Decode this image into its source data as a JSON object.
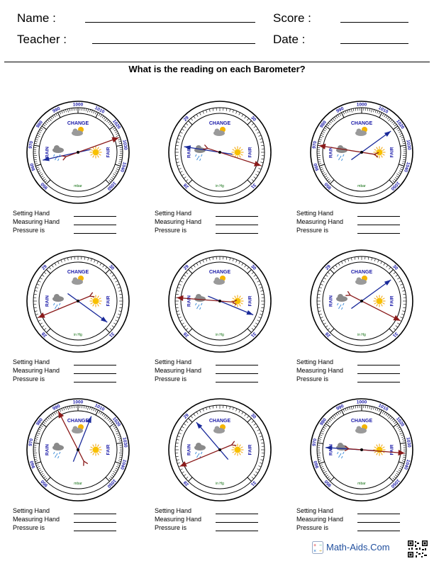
{
  "header": {
    "name_label": "Name :",
    "score_label": "Score :",
    "teacher_label": "Teacher :",
    "date_label": "Date :"
  },
  "instructions": "What is the reading on each Barometer?",
  "dial_text": {
    "change": "CHANGE",
    "rain": "RAIN",
    "fair": "FAIR"
  },
  "answer_labels": [
    "Setting Hand",
    "Measuring Hand",
    "Pressure is"
  ],
  "barometers": [
    {
      "unit": "mbar",
      "scale_min": 950,
      "scale_max": 1050,
      "labels": [
        950,
        960,
        970,
        980,
        990,
        1000,
        1010,
        1020,
        1030,
        1040,
        1050
      ],
      "measuring": 1026,
      "setting": 962
    },
    {
      "unit": "in Hg",
      "scale_min": 28,
      "scale_max": 31,
      "labels": [
        28,
        29,
        30,
        31
      ],
      "measuring": 30.7,
      "setting": 28.6
    },
    {
      "unit": "mbar",
      "scale_min": 950,
      "scale_max": 1050,
      "labels": [
        950,
        960,
        970,
        980,
        990,
        1000,
        1010,
        1020,
        1030,
        1040,
        1050
      ],
      "measuring": 970,
      "setting": 1020
    },
    {
      "unit": "in Hg",
      "scale_min": 28,
      "scale_max": 31,
      "labels": [
        28,
        29,
        30,
        31
      ],
      "measuring": 28.25,
      "setting": 30.9
    },
    {
      "unit": "in Hg",
      "scale_min": 28,
      "scale_max": 31,
      "labels": [
        28,
        29,
        30,
        31
      ],
      "measuring": 28.55,
      "setting": 30.75
    },
    {
      "unit": "in Hg",
      "scale_min": 28,
      "scale_max": 31,
      "labels": [
        28,
        29,
        30,
        31
      ],
      "measuring": 30.8,
      "setting": 30.1
    },
    {
      "unit": "mbar",
      "scale_min": 950,
      "scale_max": 1050,
      "labels": [
        950,
        960,
        970,
        980,
        990,
        1000,
        1010,
        1020,
        1030,
        1040,
        1050
      ],
      "measuring": 990,
      "setting": 1008
    },
    {
      "unit": "in Hg",
      "scale_min": 28,
      "scale_max": 31,
      "labels": [
        28,
        29,
        30,
        31
      ],
      "measuring": 28.25,
      "setting": 29.05
    },
    {
      "unit": "mbar",
      "scale_min": 950,
      "scale_max": 1050,
      "labels": [
        950,
        960,
        970,
        980,
        990,
        1000,
        1010,
        1020,
        1030,
        1040,
        1050
      ],
      "measuring": 1035,
      "setting": 968
    }
  ],
  "footer": {
    "brand": "Math-Aids.Com",
    "logo_icon": "math-operations-icon",
    "qr_icon": "qr-code-icon"
  }
}
